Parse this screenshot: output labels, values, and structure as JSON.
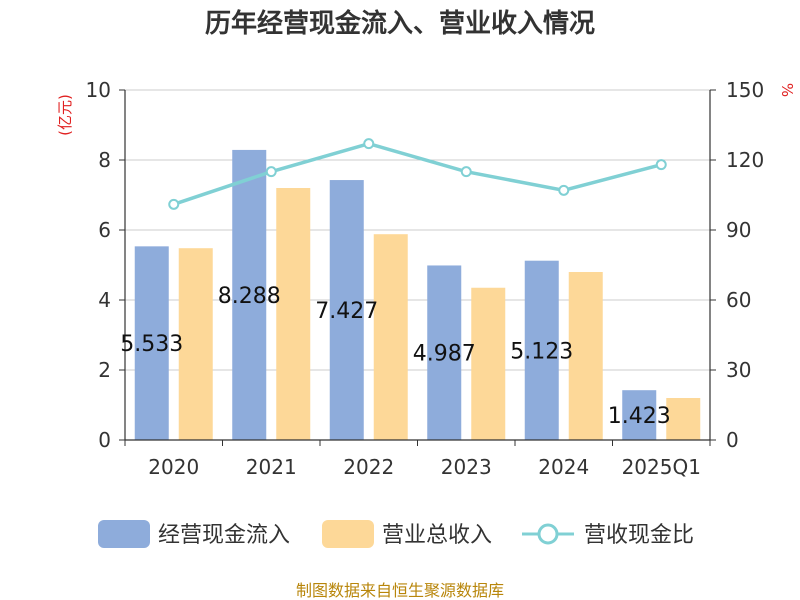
{
  "chart_data": {
    "type": "bar",
    "title": "历年经营现金流入、营业收入情况",
    "categories": [
      "2020",
      "2021",
      "2022",
      "2023",
      "2024",
      "2025Q1"
    ],
    "y_left": {
      "unit": "(亿元)",
      "ylim": [
        0,
        10
      ],
      "ticks": [
        0,
        2,
        4,
        6,
        8,
        10
      ]
    },
    "y_right": {
      "unit": "%",
      "ylim": [
        0,
        150
      ],
      "ticks": [
        0,
        30,
        60,
        90,
        120,
        150
      ]
    },
    "series": [
      {
        "name": "经营现金流入",
        "type": "bar",
        "axis": "left",
        "color": "#8eacdb",
        "values": [
          5.533,
          8.288,
          7.427,
          4.987,
          5.123,
          1.423
        ],
        "labels": [
          "5.533",
          "8.288",
          "7.427",
          "4.987",
          "5.123",
          "1.423"
        ]
      },
      {
        "name": "营业总收入",
        "type": "bar",
        "axis": "left",
        "color": "#fdd898",
        "values": [
          5.48,
          7.2,
          5.88,
          4.35,
          4.8,
          1.2
        ]
      },
      {
        "name": "营收现金比",
        "type": "line",
        "axis": "right",
        "color": "#80d0d4",
        "values": [
          101,
          115,
          127,
          115,
          107,
          118
        ]
      }
    ],
    "grid": true,
    "legend": "bottom"
  },
  "source": "制图数据来自恒生聚源数据库"
}
